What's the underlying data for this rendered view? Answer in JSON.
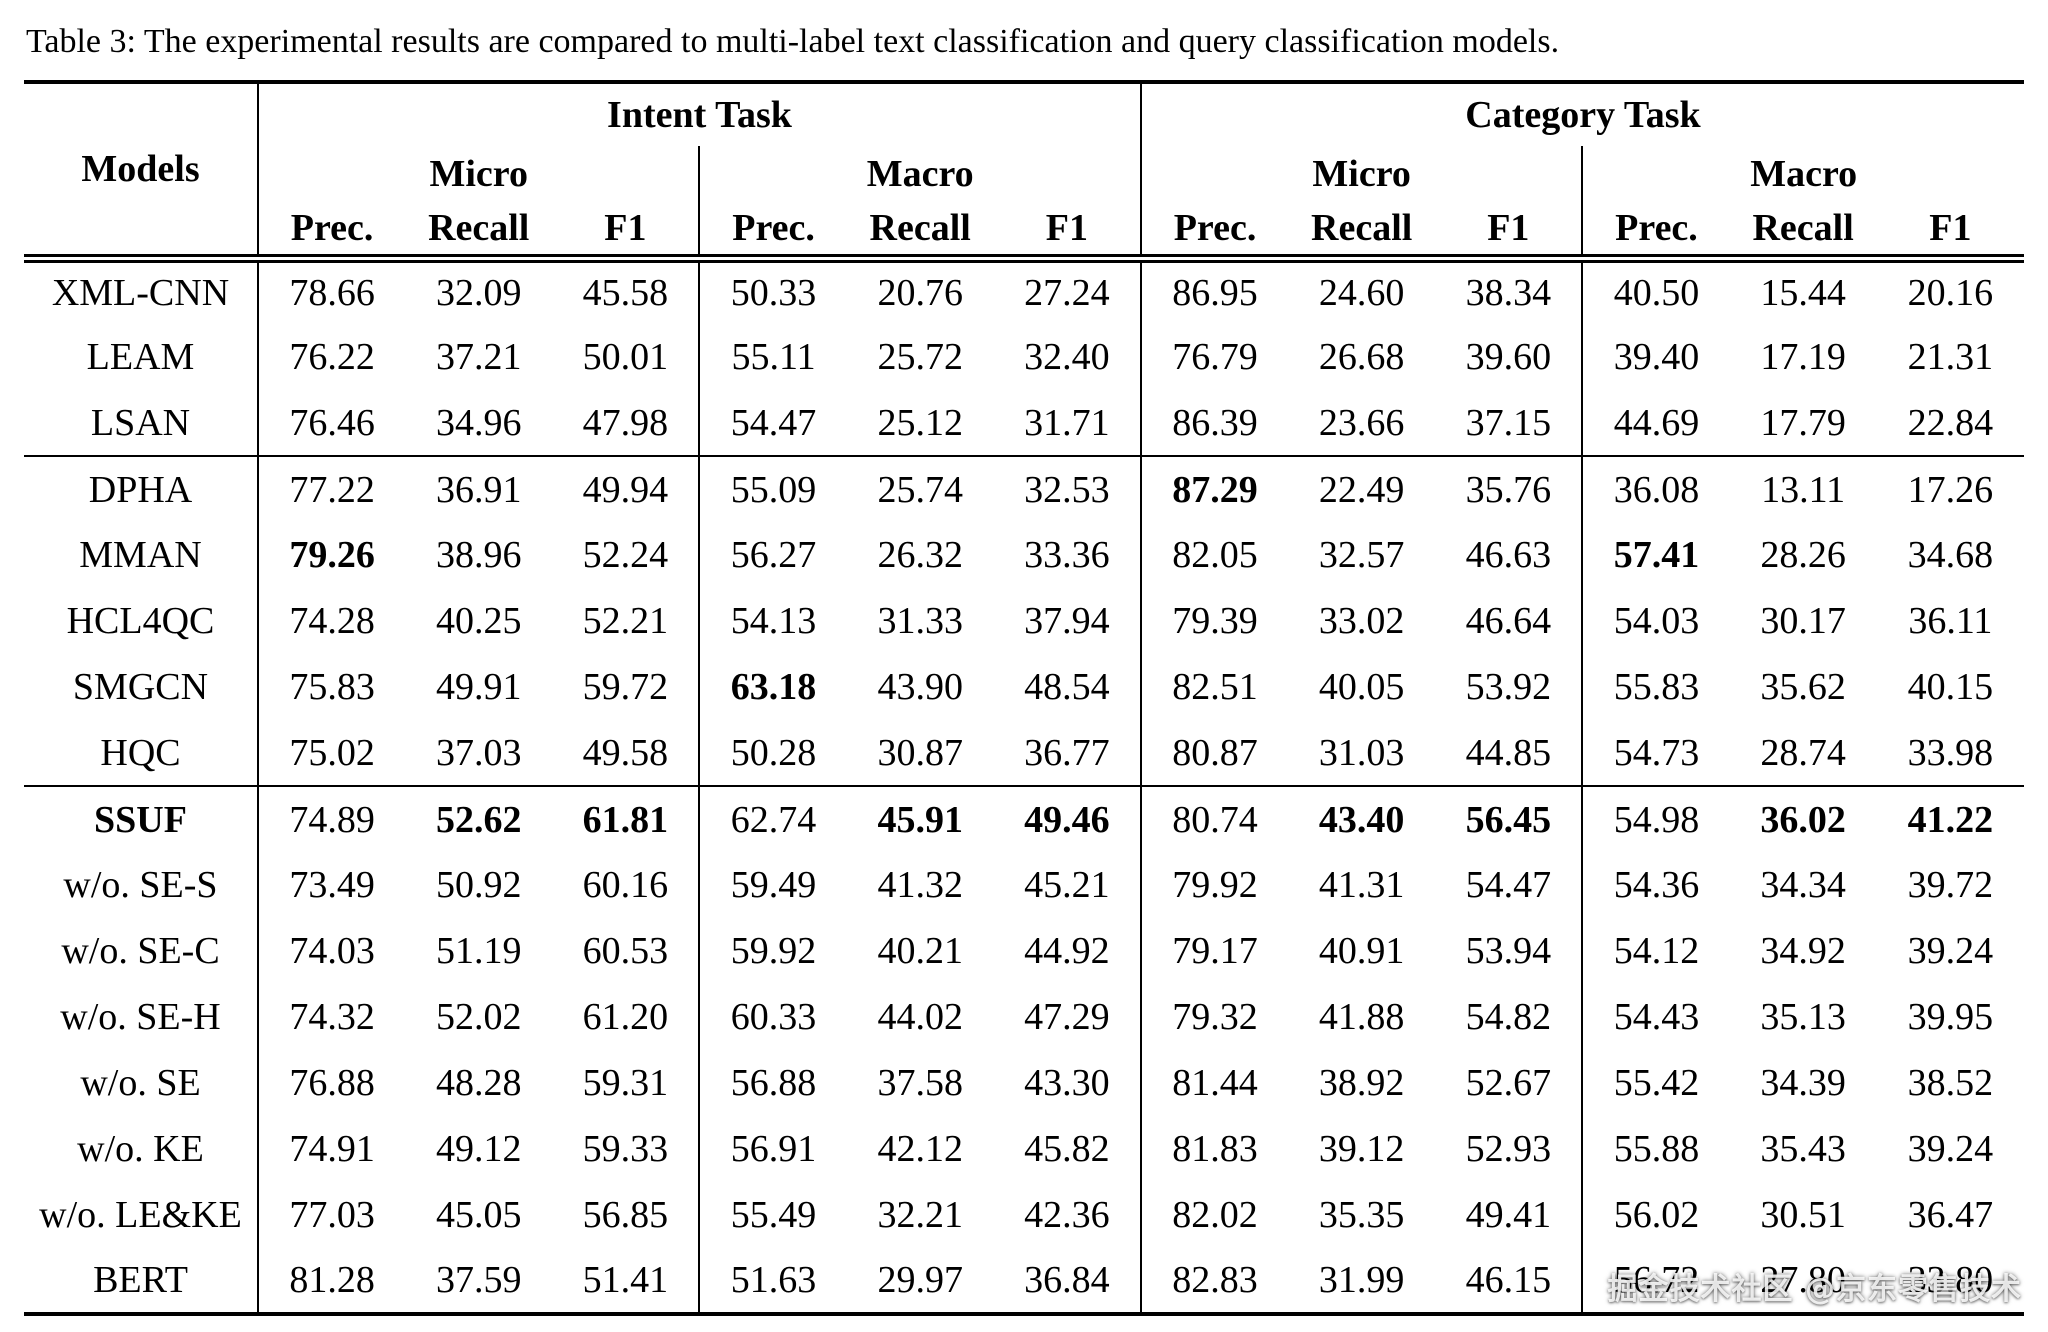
{
  "caption": "Table 3: The experimental results are compared to multi-label text classification and query classification models.",
  "header": {
    "models": "Models",
    "tasks": [
      "Intent Task",
      "Category Task"
    ],
    "subgroups": [
      "Micro",
      "Macro",
      "Micro",
      "Macro"
    ],
    "metrics": [
      "Prec.",
      "Recall",
      "F1",
      "Prec.",
      "Recall",
      "F1",
      "Prec.",
      "Recall",
      "F1",
      "Prec.",
      "Recall",
      "F1"
    ]
  },
  "groups": [
    {
      "rows": [
        {
          "model": "XML-CNN",
          "bold_model": false,
          "values": [
            "78.66",
            "32.09",
            "45.58",
            "50.33",
            "20.76",
            "27.24",
            "86.95",
            "24.60",
            "38.34",
            "40.50",
            "15.44",
            "20.16"
          ],
          "bold": []
        },
        {
          "model": "LEAM",
          "bold_model": false,
          "values": [
            "76.22",
            "37.21",
            "50.01",
            "55.11",
            "25.72",
            "32.40",
            "76.79",
            "26.68",
            "39.60",
            "39.40",
            "17.19",
            "21.31"
          ],
          "bold": []
        },
        {
          "model": "LSAN",
          "bold_model": false,
          "values": [
            "76.46",
            "34.96",
            "47.98",
            "54.47",
            "25.12",
            "31.71",
            "86.39",
            "23.66",
            "37.15",
            "44.69",
            "17.79",
            "22.84"
          ],
          "bold": []
        }
      ]
    },
    {
      "rows": [
        {
          "model": "DPHA",
          "bold_model": false,
          "values": [
            "77.22",
            "36.91",
            "49.94",
            "55.09",
            "25.74",
            "32.53",
            "87.29",
            "22.49",
            "35.76",
            "36.08",
            "13.11",
            "17.26"
          ],
          "bold": [
            6
          ]
        },
        {
          "model": "MMAN",
          "bold_model": false,
          "values": [
            "79.26",
            "38.96",
            "52.24",
            "56.27",
            "26.32",
            "33.36",
            "82.05",
            "32.57",
            "46.63",
            "57.41",
            "28.26",
            "34.68"
          ],
          "bold": [
            0,
            9
          ]
        },
        {
          "model": "HCL4QC",
          "bold_model": false,
          "values": [
            "74.28",
            "40.25",
            "52.21",
            "54.13",
            "31.33",
            "37.94",
            "79.39",
            "33.02",
            "46.64",
            "54.03",
            "30.17",
            "36.11"
          ],
          "bold": []
        },
        {
          "model": "SMGCN",
          "bold_model": false,
          "values": [
            "75.83",
            "49.91",
            "59.72",
            "63.18",
            "43.90",
            "48.54",
            "82.51",
            "40.05",
            "53.92",
            "55.83",
            "35.62",
            "40.15"
          ],
          "bold": [
            3
          ]
        },
        {
          "model": "HQC",
          "bold_model": false,
          "values": [
            "75.02",
            "37.03",
            "49.58",
            "50.28",
            "30.87",
            "36.77",
            "80.87",
            "31.03",
            "44.85",
            "54.73",
            "28.74",
            "33.98"
          ],
          "bold": []
        }
      ]
    },
    {
      "rows": [
        {
          "model": "SSUF",
          "bold_model": true,
          "values": [
            "74.89",
            "52.62",
            "61.81",
            "62.74",
            "45.91",
            "49.46",
            "80.74",
            "43.40",
            "56.45",
            "54.98",
            "36.02",
            "41.22"
          ],
          "bold": [
            1,
            2,
            4,
            5,
            7,
            8,
            10,
            11
          ]
        },
        {
          "model": "w/o. SE-S",
          "bold_model": false,
          "values": [
            "73.49",
            "50.92",
            "60.16",
            "59.49",
            "41.32",
            "45.21",
            "79.92",
            "41.31",
            "54.47",
            "54.36",
            "34.34",
            "39.72"
          ],
          "bold": []
        },
        {
          "model": "w/o. SE-C",
          "bold_model": false,
          "values": [
            "74.03",
            "51.19",
            "60.53",
            "59.92",
            "40.21",
            "44.92",
            "79.17",
            "40.91",
            "53.94",
            "54.12",
            "34.92",
            "39.24"
          ],
          "bold": []
        },
        {
          "model": "w/o. SE-H",
          "bold_model": false,
          "values": [
            "74.32",
            "52.02",
            "61.20",
            "60.33",
            "44.02",
            "47.29",
            "79.32",
            "41.88",
            "54.82",
            "54.43",
            "35.13",
            "39.95"
          ],
          "bold": []
        },
        {
          "model": "w/o. SE",
          "bold_model": false,
          "values": [
            "76.88",
            "48.28",
            "59.31",
            "56.88",
            "37.58",
            "43.30",
            "81.44",
            "38.92",
            "52.67",
            "55.42",
            "34.39",
            "38.52"
          ],
          "bold": []
        },
        {
          "model": "w/o. KE",
          "bold_model": false,
          "values": [
            "74.91",
            "49.12",
            "59.33",
            "56.91",
            "42.12",
            "45.82",
            "81.83",
            "39.12",
            "52.93",
            "55.88",
            "35.43",
            "39.24"
          ],
          "bold": []
        },
        {
          "model": "w/o. LE&KE",
          "bold_model": false,
          "values": [
            "77.03",
            "45.05",
            "56.85",
            "55.49",
            "32.21",
            "42.36",
            "82.02",
            "35.35",
            "49.41",
            "56.02",
            "30.51",
            "36.47"
          ],
          "bold": []
        },
        {
          "model": "BERT",
          "bold_model": false,
          "values": [
            "81.28",
            "37.59",
            "51.41",
            "51.63",
            "29.97",
            "36.84",
            "82.83",
            "31.99",
            "46.15",
            "56.72",
            "27.80",
            "33.80"
          ],
          "bold": []
        }
      ]
    }
  ],
  "watermark": "掘金技术社区 @京东零售技术"
}
